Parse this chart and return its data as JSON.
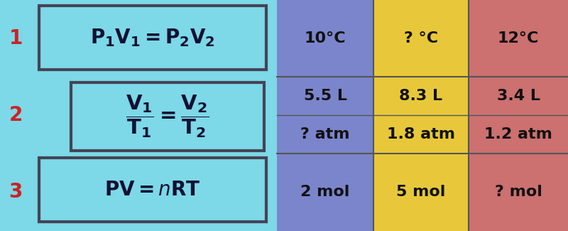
{
  "bg_color": "#7dd8e8",
  "col1_color": "#7b85cc",
  "col2_color": "#e8c83a",
  "col3_color": "#cc7070",
  "row_number_color": "#cc2222",
  "row_numbers": [
    "1",
    "2",
    "3"
  ],
  "col1_data_r1": "10°C",
  "col2_data_r1": "? °C",
  "col3_data_r1": "12°C",
  "col1_data_r2a": "5.5 L",
  "col2_data_r2a": "8.3 L",
  "col3_data_r2a": "3.4 L",
  "col1_data_r2b": "? atm",
  "col2_data_r2b": "1.8 atm",
  "col3_data_r2b": "1.2 atm",
  "col1_data_r3": "2 mol",
  "col2_data_r3": "5 mol",
  "col3_data_r3": "? mol",
  "divider_color": "#555555",
  "box_edge_color": "#444455",
  "cell_fontsize": 15,
  "number_fontsize": 20,
  "formula_fontsize": 18
}
